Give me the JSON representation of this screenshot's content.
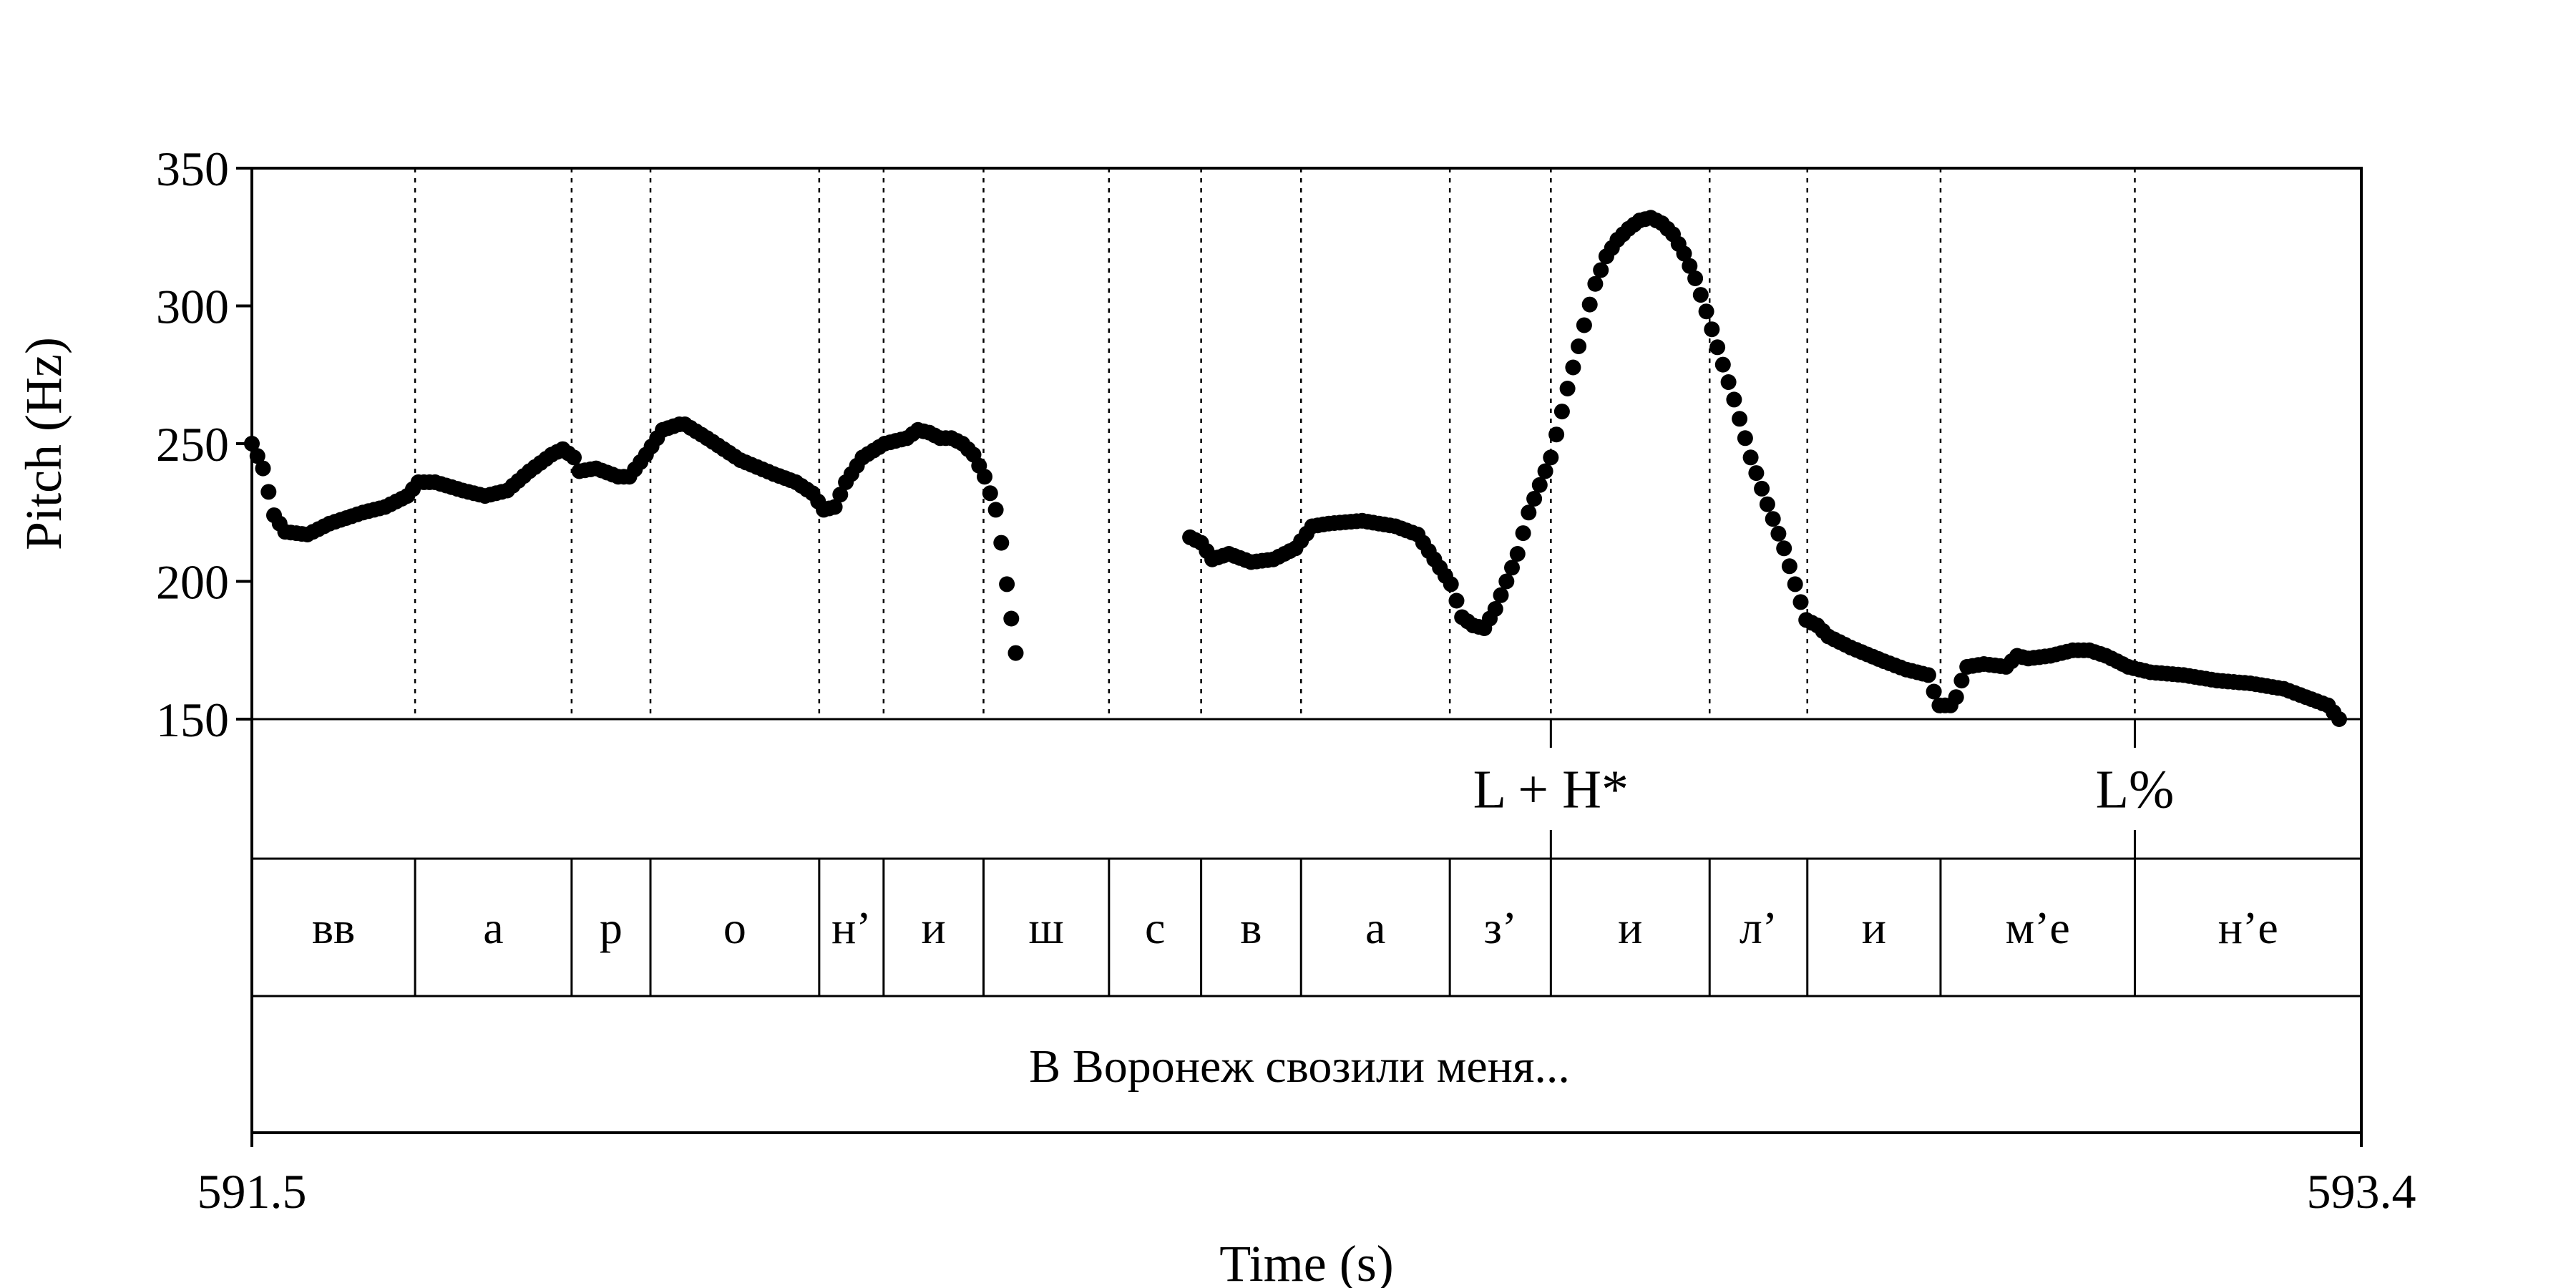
{
  "chart_data": {
    "type": "scatter",
    "xlabel": "Time (s)",
    "ylabel": "Pitch (Hz)",
    "xlim": [
      591.5,
      593.4
    ],
    "ylim": [
      150,
      350
    ],
    "x_tick_labels": [
      "591.5",
      "593.4"
    ],
    "y_ticks": [
      150,
      200,
      250,
      300,
      350
    ],
    "grid": "dotted vertical lines at segment boundaries",
    "boundaries": [
      591.647,
      591.788,
      591.859,
      592.011,
      592.069,
      592.159,
      592.272,
      592.355,
      592.445,
      592.579,
      592.67,
      592.813,
      592.901,
      593.021,
      593.196
    ],
    "tones": [
      {
        "label": "L + H*",
        "time": 592.67
      },
      {
        "label": "L%",
        "time": 593.196
      }
    ],
    "segments": [
      "вв",
      "а",
      "р",
      "о",
      "н’",
      "и",
      "ш",
      "с",
      "в",
      "а",
      "з’",
      "и",
      "л’",
      "и",
      "м’е",
      "н’е"
    ],
    "utterance": "В Воронеж свозили меня...",
    "pitch_anchors": [
      [
        [
          591.5,
          250
        ],
        [
          591.51,
          241
        ],
        [
          591.52,
          224
        ],
        [
          591.53,
          218
        ],
        [
          591.55,
          217
        ],
        [
          591.57,
          221
        ],
        [
          591.6,
          225
        ],
        [
          591.62,
          227
        ],
        [
          591.64,
          231
        ],
        [
          591.65,
          236
        ],
        [
          591.665,
          236
        ],
        [
          591.69,
          233
        ],
        [
          591.71,
          231
        ],
        [
          591.73,
          233
        ],
        [
          591.75,
          240
        ],
        [
          591.77,
          246
        ],
        [
          591.78,
          248
        ],
        [
          591.79,
          245
        ],
        [
          591.795,
          240
        ],
        [
          591.81,
          241
        ],
        [
          591.83,
          238
        ],
        [
          591.84,
          238
        ],
        [
          591.855,
          246
        ],
        [
          591.87,
          255
        ],
        [
          591.885,
          257
        ],
        [
          591.89,
          257
        ],
        [
          591.91,
          252
        ],
        [
          591.94,
          244
        ],
        [
          591.97,
          239
        ],
        [
          591.99,
          236
        ],
        [
          592.005,
          232
        ],
        [
          592.015,
          226
        ],
        [
          592.025,
          227
        ],
        [
          592.035,
          236
        ],
        [
          592.05,
          245
        ],
        [
          592.07,
          250
        ],
        [
          592.09,
          252
        ],
        [
          592.1,
          255
        ],
        [
          592.11,
          254
        ],
        [
          592.12,
          252
        ],
        [
          592.13,
          252
        ],
        [
          592.14,
          250
        ],
        [
          592.15,
          246
        ],
        [
          592.16,
          238
        ],
        [
          592.17,
          226
        ],
        [
          592.175,
          214
        ],
        [
          592.18,
          199
        ],
        [
          592.188,
          174
        ]
      ],
      [
        [
          592.345,
          216
        ],
        [
          592.355,
          214
        ],
        [
          592.365,
          208
        ],
        [
          592.38,
          210
        ],
        [
          592.4,
          207
        ],
        [
          592.42,
          208
        ],
        [
          592.44,
          212
        ],
        [
          592.455,
          220
        ],
        [
          592.47,
          221
        ],
        [
          592.5,
          222
        ],
        [
          592.53,
          220
        ],
        [
          592.55,
          217
        ],
        [
          592.57,
          205
        ],
        [
          592.58,
          199
        ],
        [
          592.59,
          187
        ],
        [
          592.6,
          184
        ],
        [
          592.61,
          183
        ],
        [
          592.62,
          190
        ],
        [
          592.63,
          200
        ],
        [
          592.64,
          210
        ],
        [
          592.65,
          225
        ],
        [
          592.67,
          245
        ],
        [
          592.685,
          270
        ],
        [
          592.7,
          293
        ],
        [
          592.71,
          308
        ],
        [
          592.72,
          318
        ],
        [
          592.73,
          324
        ],
        [
          592.74,
          328
        ],
        [
          592.75,
          331
        ],
        [
          592.76,
          332
        ],
        [
          592.77,
          330
        ],
        [
          592.78,
          326
        ],
        [
          592.79,
          319
        ],
        [
          592.8,
          310
        ],
        [
          592.81,
          298
        ],
        [
          592.82,
          285
        ],
        [
          592.835,
          266
        ],
        [
          592.85,
          245
        ],
        [
          592.865,
          228
        ],
        [
          592.88,
          212
        ],
        [
          592.89,
          199
        ],
        [
          592.9,
          186
        ],
        [
          592.91,
          184
        ],
        [
          592.92,
          180
        ],
        [
          592.94,
          176
        ],
        [
          592.97,
          171
        ],
        [
          592.99,
          168
        ],
        [
          593.0,
          167
        ],
        [
          593.01,
          166
        ],
        [
          593.015,
          160
        ],
        [
          593.02,
          155
        ],
        [
          593.03,
          155
        ],
        [
          593.035,
          158
        ],
        [
          593.04,
          164
        ],
        [
          593.045,
          169
        ],
        [
          593.06,
          170
        ],
        [
          593.08,
          169
        ],
        [
          593.09,
          173
        ],
        [
          593.1,
          172
        ],
        [
          593.12,
          173
        ],
        [
          593.14,
          175
        ],
        [
          593.155,
          175
        ],
        [
          593.17,
          173
        ],
        [
          593.19,
          169
        ],
        [
          593.21,
          167
        ],
        [
          593.24,
          166
        ],
        [
          593.27,
          164
        ],
        [
          593.3,
          163
        ],
        [
          593.33,
          161
        ],
        [
          593.35,
          158
        ],
        [
          593.37,
          155
        ],
        [
          593.38,
          150
        ]
      ]
    ]
  }
}
